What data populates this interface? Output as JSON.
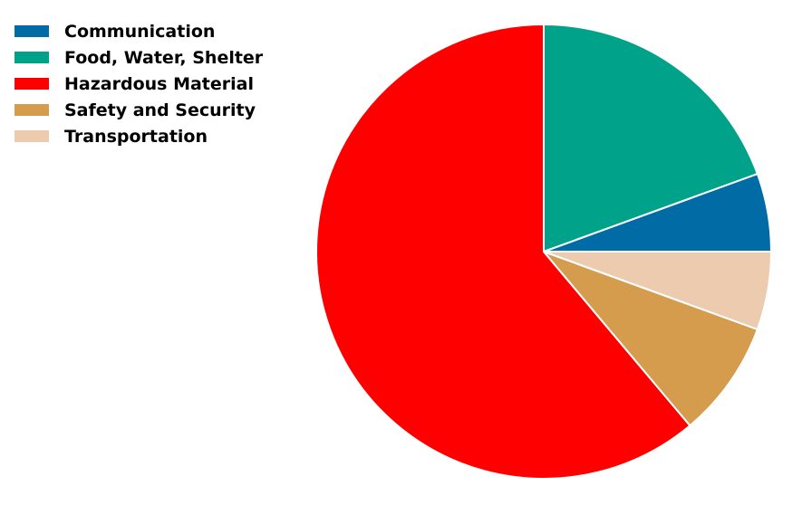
{
  "chart_data": {
    "type": "pie",
    "start_angle_deg": 0,
    "direction": "counterclockwise",
    "legend_position": "upper-left",
    "slices": [
      {
        "label": "Communication",
        "value": 5.56,
        "color": "#006BA4"
      },
      {
        "label": "Food, Water, Shelter",
        "value": 19.44,
        "color": "#00A38A"
      },
      {
        "label": "Hazardous Material",
        "value": 61.11,
        "color": "#FF0000"
      },
      {
        "label": "Safety and Security",
        "value": 8.33,
        "color": "#D59C4D"
      },
      {
        "label": "Transportation",
        "value": 5.56,
        "color": "#ECCBAE"
      }
    ]
  }
}
